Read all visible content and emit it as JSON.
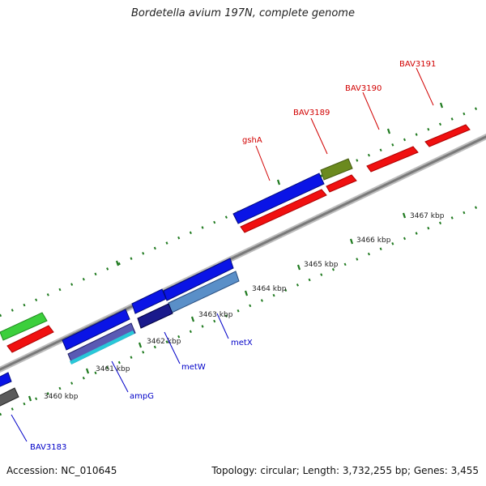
{
  "title": "Bordetella avium 197N, complete genome",
  "footer": {
    "accession": "Accession: NC_010645",
    "summary": "Topology: circular; Length: 3,732,255 bp; Genes: 3,455"
  },
  "colors": {
    "backbone": "#8a8a8a",
    "tick_dots": "#1f7a1f",
    "label_red": "#d10000",
    "label_blue": "#0000c8",
    "feature_blue": "#0a14e6",
    "feature_red": "#f01010",
    "feature_green": "#3ccf3c",
    "feature_olive": "#6b8a1e",
    "feature_steel": "#5a8fc8",
    "feature_gray": "#5a5a5a"
  },
  "scale_labels": [
    "3460 kbp",
    "3461 kbp",
    "3462 kbp",
    "3463 kbp",
    "3464 kbp",
    "3465 kbp",
    "3466 kbp",
    "3467 kbp"
  ],
  "gene_labels": {
    "top": [
      "gshA",
      "BAV3189",
      "BAV3190",
      "BAV3191"
    ],
    "bottom": [
      "BAV3183",
      "ampG",
      "metW",
      "metX"
    ]
  }
}
